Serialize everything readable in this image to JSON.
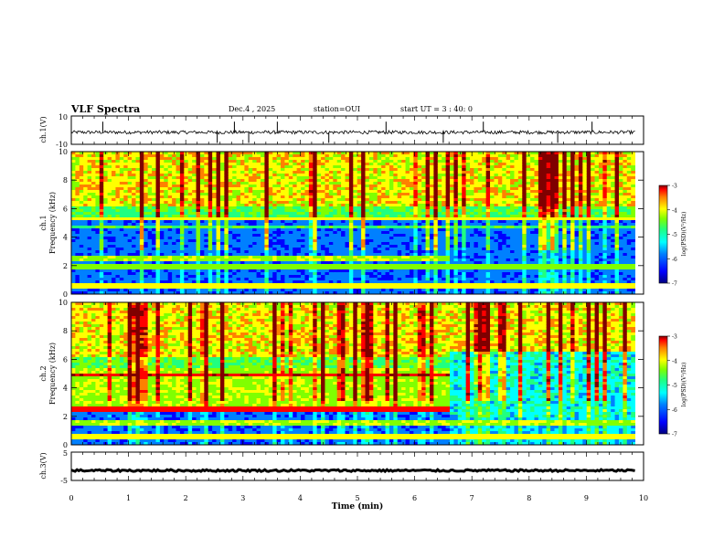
{
  "header": {
    "title": "VLF Spectra",
    "date": "Dec.4 , 2025",
    "station": "station=OUI",
    "start": "start UT = 3 : 40: 0"
  },
  "colors": {
    "cmap": [
      "#00007f",
      "#0000ff",
      "#0080ff",
      "#00ffff",
      "#20ff80",
      "#80ff00",
      "#ffff00",
      "#ff8000",
      "#ff0000",
      "#7f0000"
    ],
    "trace": "#000000",
    "axis": "#000000"
  },
  "chart_data": [
    {
      "type": "line",
      "name": "ch1-waveform",
      "ylabel": "ch.1(V)",
      "ylim": [
        -10,
        10
      ],
      "yticks": [
        "10",
        "-10"
      ],
      "baseline_v": -1.5,
      "noise_amplitude_v": 1.2,
      "spike_times_min": [
        0.55,
        2.55,
        2.85,
        3.1,
        3.6,
        4.5,
        5.5,
        6.5,
        7.2,
        8.5,
        9.1
      ]
    },
    {
      "type": "heatmap",
      "name": "ch1-spectrogram",
      "ylabel": "ch.1\nFrequency (kHz)",
      "ylabel_top": "ch.1",
      "ylabel_bottom": "Frequency (kHz)",
      "xlim": [
        0,
        9.85
      ],
      "ylim": [
        0,
        10
      ],
      "yticks": [
        "0",
        "2",
        "4",
        "6",
        "8",
        "10"
      ],
      "colorbar": {
        "label": "log(PSD)(V²/Hz)",
        "range": [
          -7,
          -3
        ],
        "ticks": [
          "-3",
          "-4",
          "-5",
          "-6",
          "-7"
        ]
      },
      "bands": [
        {
          "f_khz": 5.3,
          "level": 0.62,
          "t_end": 9.85
        },
        {
          "f_khz": 4.7,
          "level": 0.45,
          "t_end": 9.85
        },
        {
          "f_khz": 2.45,
          "level": 0.55,
          "t_end": 6.6
        },
        {
          "f_khz": 1.9,
          "level": 0.5,
          "t_end": 9.85
        },
        {
          "f_khz": 0.5,
          "level": 0.6,
          "t_end": 9.85
        }
      ]
    },
    {
      "type": "heatmap",
      "name": "ch2-spectrogram",
      "ylabel": "ch.2\nFrequency (kHz)",
      "ylabel_top": "ch.2",
      "ylabel_bottom": "Frequency (kHz)",
      "xlim": [
        0,
        9.85
      ],
      "ylim": [
        0,
        10
      ],
      "yticks": [
        "0",
        "2",
        "4",
        "6",
        "8",
        "10"
      ],
      "colorbar": {
        "label": "log(PSD)(V²/Hz)",
        "range": [
          -7,
          -3
        ],
        "ticks": [
          "-3",
          "-4",
          "-5",
          "-6",
          "-7"
        ]
      },
      "bands": [
        {
          "f_khz": 4.9,
          "level": 0.85,
          "t_end": 6.6
        },
        {
          "f_khz": 2.5,
          "level": 0.8,
          "t_end": 6.6
        },
        {
          "f_khz": 1.6,
          "level": 0.55,
          "t_end": 9.85
        },
        {
          "f_khz": 0.5,
          "level": 0.6,
          "t_end": 9.85
        }
      ]
    },
    {
      "type": "line",
      "name": "ch3-waveform",
      "ylabel": "ch.3(V)",
      "ylim": [
        -5,
        5
      ],
      "yticks": [
        "5",
        "-5"
      ],
      "baseline_v": -1.5,
      "noise_amplitude_v": 0.35
    }
  ],
  "x_axis": {
    "label": "Time (min)",
    "range": [
      0,
      10
    ],
    "ticks": [
      "0",
      "1",
      "2",
      "3",
      "4",
      "5",
      "6",
      "7",
      "8",
      "9",
      "10"
    ]
  }
}
